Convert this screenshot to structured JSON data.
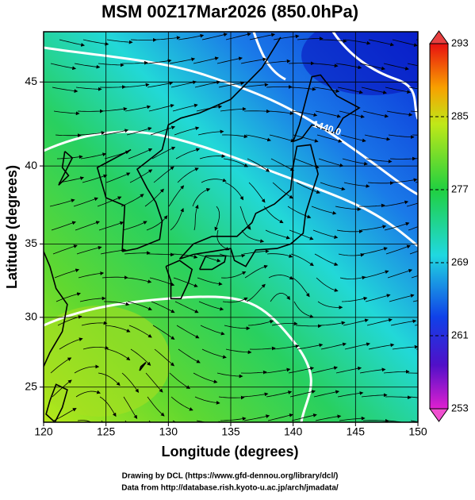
{
  "chart_data": {
    "type": "map",
    "title": "MSM 00Z17Mar2026 (850.0hPa)",
    "x_label": "Longitude (degrees)",
    "y_label": "Latitude  (degrees)",
    "projection": "mercator",
    "xlim": [
      120,
      150
    ],
    "ylim": [
      22.4,
      47.8
    ],
    "xticks": [
      120,
      125,
      130,
      135,
      140,
      145,
      150
    ],
    "yticks": [
      25,
      30,
      35,
      40,
      45
    ],
    "grid": true,
    "colorbar": {
      "clim": [
        253,
        293
      ],
      "ticks": [
        253,
        261,
        269,
        277,
        285,
        293
      ]
    },
    "contour_labels": [
      "1440.0"
    ],
    "credits": [
      "Drawing by DCL (https://www.gfd-dennou.org/library/dcl/)",
      "Data from http://database.rish.kyoto-u.ac.jp/arch/jmadata/"
    ]
  }
}
